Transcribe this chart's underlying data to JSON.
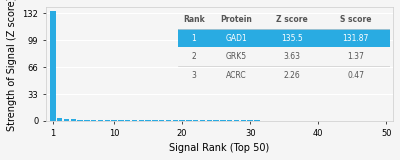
{
  "bar_color": "#29abe2",
  "bar_x": [
    1,
    2,
    3,
    4,
    5,
    6,
    7,
    8,
    9,
    10,
    11,
    12,
    13,
    14,
    15,
    16,
    17,
    18,
    19,
    20,
    21,
    22,
    23,
    24,
    25,
    26,
    27,
    28,
    29,
    30,
    31,
    32,
    33,
    34,
    35,
    36,
    37,
    38,
    39,
    40,
    41,
    42,
    43,
    44,
    45,
    46,
    47,
    48,
    49,
    50
  ],
  "bar_heights": [
    135.5,
    3.63,
    2.26,
    1.8,
    1.5,
    1.3,
    1.2,
    1.1,
    1.0,
    0.95,
    0.9,
    0.85,
    0.82,
    0.8,
    0.78,
    0.76,
    0.74,
    0.72,
    0.7,
    0.68,
    0.66,
    0.64,
    0.62,
    0.6,
    0.58,
    0.56,
    0.54,
    0.52,
    0.5,
    0.48,
    0.46,
    0.44,
    0.42,
    0.4,
    0.38,
    0.36,
    0.34,
    0.32,
    0.3,
    0.28,
    0.26,
    0.24,
    0.22,
    0.2,
    0.18,
    0.16,
    0.14,
    0.12,
    0.1,
    0.08
  ],
  "yticks": [
    0,
    33,
    66,
    99,
    132
  ],
  "xlim": [
    0,
    51
  ],
  "ylim": [
    0,
    140
  ],
  "xlabel": "Signal Rank (Top 50)",
  "ylabel": "Strength of Signal (Z score)",
  "xticks": [
    1,
    10,
    20,
    30,
    40,
    50
  ],
  "background_color": "#f5f5f5",
  "grid_color": "#ffffff",
  "table_header_color": "#29abe2",
  "table_header_text_color": "#ffffff",
  "table_row1_color": "#29abe2",
  "table_row1_text_color": "#ffffff",
  "table_row_bg": "#f5f5f5",
  "table_col_headers": [
    "Rank",
    "Protein",
    "Z score",
    "S score"
  ],
  "table_data": [
    [
      "1",
      "GAD1",
      "135.5",
      "131.87"
    ],
    [
      "2",
      "GRK5",
      "3.63",
      "1.37"
    ],
    [
      "3",
      "ACRC",
      "2.26",
      "0.47"
    ]
  ],
  "axis_label_fontsize": 7,
  "tick_fontsize": 6,
  "table_fontsize": 5.5
}
